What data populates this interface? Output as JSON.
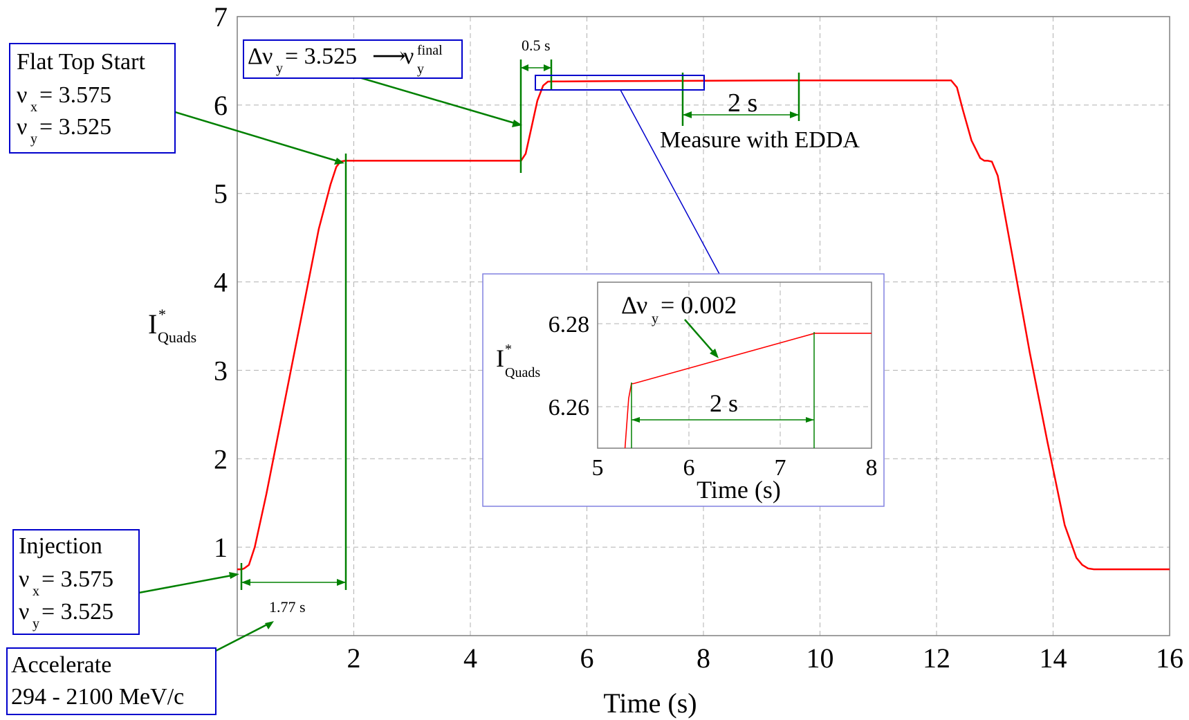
{
  "chart_data": [
    {
      "type": "line",
      "xlabel": "Time  (s)",
      "ylabel": "I*Quads",
      "ylabel_main": "I",
      "ylabel_sup": "*",
      "ylabel_sub": "Quads",
      "xlim": [
        0,
        16
      ],
      "ylim": [
        0,
        7
      ],
      "x_ticks": [
        2,
        4,
        6,
        8,
        10,
        12,
        14,
        16
      ],
      "y_ticks": [
        1,
        2,
        3,
        4,
        5,
        6,
        7
      ],
      "grid": true,
      "series": [
        {
          "color": "#ff0000",
          "x": [
            0,
            0.08,
            0.12,
            0.2,
            0.3,
            0.5,
            0.8,
            1.1,
            1.4,
            1.6,
            1.7,
            1.77,
            1.85,
            2.0,
            3.0,
            4.0,
            4.87,
            4.95,
            5.05,
            5.15,
            5.25,
            5.33,
            5.4,
            5.6,
            6.0,
            7.0,
            8.0,
            9.0,
            10.0,
            11.0,
            12.0,
            12.25,
            12.35,
            12.45,
            12.6,
            12.75,
            12.82,
            12.88,
            12.95,
            13.05,
            13.3,
            13.6,
            13.9,
            14.2,
            14.4,
            14.5,
            14.6,
            14.7,
            15.0,
            16.0
          ],
          "y": [
            0.75,
            0.75,
            0.76,
            0.8,
            1.0,
            1.6,
            2.6,
            3.6,
            4.6,
            5.1,
            5.3,
            5.36,
            5.37,
            5.37,
            5.37,
            5.37,
            5.37,
            5.45,
            5.75,
            6.05,
            6.22,
            6.265,
            6.266,
            6.267,
            6.269,
            6.272,
            6.275,
            6.277,
            6.279,
            6.279,
            6.279,
            6.279,
            6.2,
            5.95,
            5.6,
            5.4,
            5.37,
            5.37,
            5.36,
            5.2,
            4.3,
            3.2,
            2.2,
            1.25,
            0.88,
            0.8,
            0.76,
            0.75,
            0.75,
            0.75
          ]
        }
      ],
      "annotations": [
        {
          "lines": [
            "Flat Top Start",
            "ν",
            "x",
            " = 3.575",
            "ν",
            "y",
            " = 3.525"
          ]
        },
        {
          "text": "Δν_y = 3.525 → ν_y^final"
        },
        {
          "text": "0.5 s"
        },
        {
          "text": "2 s"
        },
        {
          "text": "Measure with EDDA"
        },
        {
          "text": "1.77 s"
        },
        {
          "text": "Injection ν_x = 3.575 ν_y = 3.525"
        },
        {
          "text": "Accelerate 294 - 2100 MeV/c"
        }
      ]
    },
    {
      "type": "line",
      "xlabel": "Time (s)",
      "ylabel": "I*Quads",
      "xlim": [
        5,
        8
      ],
      "ylim": [
        6.25,
        6.29
      ],
      "x_ticks": [
        5,
        6,
        7,
        8
      ],
      "y_ticks": [
        6.26,
        6.28
      ],
      "grid": true,
      "series": [
        {
          "color": "#ff0000",
          "x": [
            5.3,
            5.34,
            5.37,
            5.4,
            7.38,
            7.4,
            8.0
          ],
          "y": [
            6.25,
            6.262,
            6.2655,
            6.2656,
            6.2777,
            6.2777,
            6.2777
          ]
        }
      ],
      "annotations": [
        {
          "text": "Δν_y = 0.002"
        },
        {
          "text": "2 s"
        }
      ]
    }
  ],
  "labels": {
    "flat_top_title": "Flat Top Start",
    "nu": "ν",
    "sub_x": "x",
    "sub_y": "y",
    "sup_final": "final",
    "tune_x_val": " = 3.575",
    "tune_y_val": " = 3.525",
    "delta": "Δ",
    "delta_eq": " = 3.525",
    "arrow": "⟶",
    "half_s": "0.5 s",
    "two_s": "2 s",
    "measure": "Measure with EDDA",
    "t177": "1.77 s",
    "injection": "Injection",
    "accelerate": "Accelerate",
    "momentum": "294 - 2100 MeV/c",
    "inset_delta_val": " = 0.002",
    "ylabel_I": "I",
    "ylabel_star": "*",
    "ylabel_quads": "Quads"
  }
}
